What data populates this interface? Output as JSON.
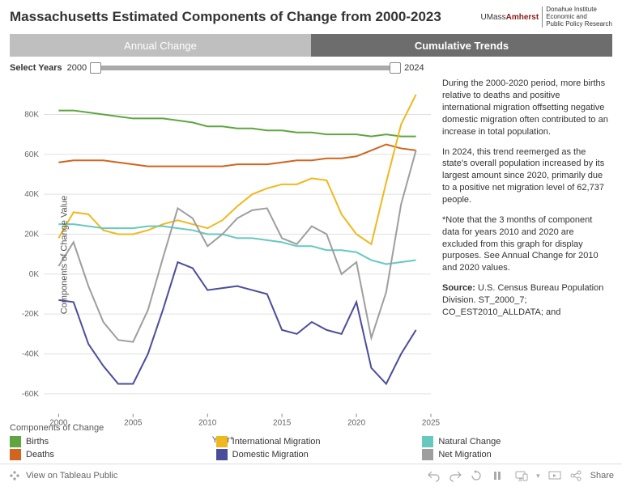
{
  "title": "Massachusetts Estimated Components of Change from 2000-2023",
  "logo": {
    "main_a": "UMass",
    "main_b": "Amherst",
    "sub1": "Donahue Institute",
    "sub2": "Economic and",
    "sub3": "Public Policy Research"
  },
  "tabs": {
    "inactive": "Annual Change",
    "active": "Cumulative Trends"
  },
  "slider": {
    "label": "Select Years",
    "start": "2000",
    "end": "2024"
  },
  "chart": {
    "type": "line",
    "ylabel": "Components of Change Value",
    "xlabel": "Year*",
    "ylim": [
      -70000,
      95000
    ],
    "ytick_step": 20000,
    "yticks": [
      -60000,
      -40000,
      -20000,
      0,
      20000,
      40000,
      60000,
      80000
    ],
    "ytick_labels": [
      "-60K",
      "-40K",
      "-20K",
      "0K",
      "20K",
      "40K",
      "60K",
      "80K"
    ],
    "xlim": [
      1999,
      2025
    ],
    "xticks": [
      2000,
      2005,
      2010,
      2015,
      2020,
      2025
    ],
    "background_color": "#ffffff",
    "grid_color": "#e0e0e0",
    "line_width": 2,
    "years": [
      2000,
      2001,
      2002,
      2003,
      2004,
      2005,
      2006,
      2007,
      2008,
      2009,
      2010,
      2011,
      2012,
      2013,
      2014,
      2015,
      2016,
      2017,
      2018,
      2019,
      2020,
      2021,
      2022,
      2023,
      2024
    ],
    "series": {
      "births": {
        "color": "#5fa641",
        "label": "Births",
        "values": [
          82000,
          82000,
          81000,
          80000,
          79000,
          78000,
          78000,
          78000,
          77000,
          76000,
          74000,
          74000,
          73000,
          73000,
          72000,
          72000,
          71000,
          71000,
          70000,
          70000,
          70000,
          69000,
          70000,
          69000,
          69000
        ]
      },
      "deaths": {
        "color": "#d1641f",
        "label": "Deaths",
        "values": [
          56000,
          57000,
          57000,
          57000,
          56000,
          55000,
          54000,
          54000,
          54000,
          54000,
          54000,
          54000,
          55000,
          55000,
          55000,
          56000,
          57000,
          57000,
          58000,
          58000,
          59000,
          62000,
          65000,
          63000,
          62000
        ]
      },
      "intl": {
        "color": "#f0b81f",
        "label": "International Migration",
        "values": [
          18000,
          31000,
          30000,
          22000,
          20000,
          20000,
          22000,
          25000,
          27000,
          25000,
          23000,
          27000,
          34000,
          40000,
          43000,
          45000,
          45000,
          48000,
          47000,
          30000,
          20000,
          15000,
          46000,
          75000,
          90000
        ]
      },
      "domestic": {
        "color": "#4b4d9b",
        "label": "Domestic Migration",
        "values": [
          -13000,
          -14000,
          -35000,
          -46000,
          -55000,
          -55000,
          -40000,
          -18000,
          6000,
          3000,
          -8000,
          -7000,
          -6000,
          -8000,
          -10000,
          -28000,
          -30000,
          -24000,
          -28000,
          -30000,
          -14000,
          -47000,
          -55000,
          -40000,
          -28000
        ]
      },
      "natural": {
        "color": "#66c9bf",
        "label": "Natural Change",
        "values": [
          25000,
          25000,
          24000,
          23000,
          23000,
          23000,
          24000,
          24000,
          23000,
          22000,
          20000,
          20000,
          18000,
          18000,
          17000,
          16000,
          14000,
          14000,
          12000,
          12000,
          11000,
          7000,
          5000,
          6000,
          7000
        ]
      },
      "netmig": {
        "color": "#9e9e9e",
        "label": "Net Migration",
        "values": [
          4000,
          16000,
          -6000,
          -24000,
          -33000,
          -34000,
          -18000,
          8000,
          33000,
          28000,
          14000,
          20000,
          28000,
          32000,
          33000,
          18000,
          15000,
          24000,
          20000,
          0,
          6000,
          -32000,
          -9000,
          35000,
          62000
        ]
      }
    }
  },
  "legend": {
    "title": "Components of Change",
    "items": [
      {
        "key": "births",
        "label": "Births",
        "color": "#5fa641"
      },
      {
        "key": "intl",
        "label": "International Migration",
        "color": "#f0b81f"
      },
      {
        "key": "natural",
        "label": "Natural Change",
        "color": "#66c9bf"
      },
      {
        "key": "deaths",
        "label": "Deaths",
        "color": "#d1641f"
      },
      {
        "key": "domestic",
        "label": "Domestic Migration",
        "color": "#4b4d9b"
      },
      {
        "key": "netmig",
        "label": "Net Migration",
        "color": "#9e9e9e"
      }
    ]
  },
  "explain": {
    "p1": "During the 2000-2020 period, more births relative to deaths and positive international migration offsetting negative domestic migration often contributed to an increase in total population.",
    "p2": "In 2024, this trend reemerged as the state's overall population increased by its largest amount since 2020, primarily due to a positive net migration level of 62,737 people.",
    "p3": "*Note that the 3 months of component data for years 2010 and 2020 are excluded from this graph for display purposes. See Annual Change for 2010 and 2020 values.",
    "p4a": "Source: ",
    "p4b": "U.S. Census Bureau Population Division. ST_2000_7; CO_EST2010_ALLDATA; and"
  },
  "toolbar": {
    "view": "View on Tableau Public",
    "share": "Share"
  }
}
